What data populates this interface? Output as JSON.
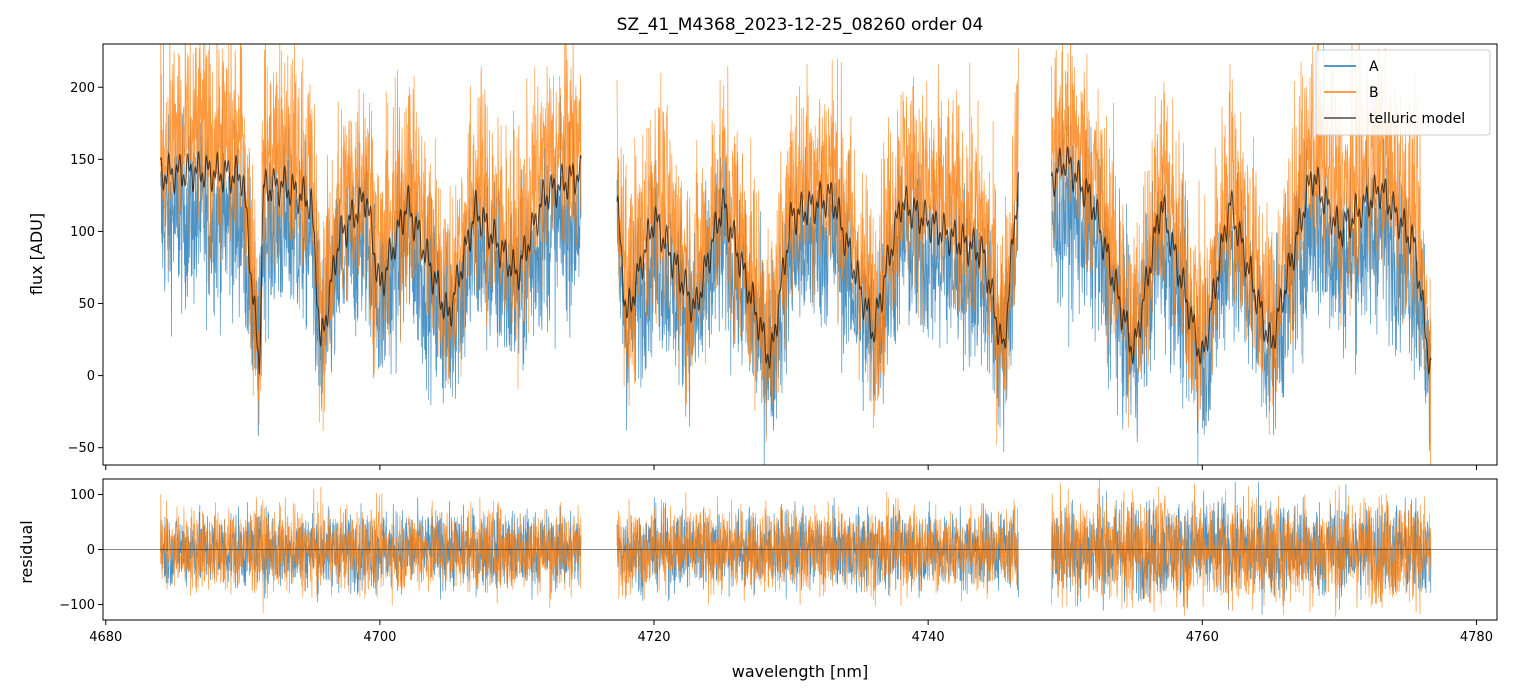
{
  "figure": {
    "title": "SZ_41_M4368_2023-12-25_08260  order 04",
    "xlabel": "wavelength [nm]"
  },
  "colors": {
    "A": "#1f77b4",
    "B": "#ff7f0e",
    "telluric": "#000000"
  },
  "legend": {
    "placement": "top-right",
    "entries": [
      "A",
      "B",
      "telluric model"
    ]
  },
  "chart_data": [
    {
      "type": "line",
      "panel": "top",
      "ylabel": "flux [ADU]",
      "xlim": [
        4679.8,
        4781.5
      ],
      "ylim": [
        -62,
        230
      ],
      "x_ticks": [
        4680,
        4700,
        4720,
        4740,
        4760,
        4780
      ],
      "x_tick_labels_shown": false,
      "y_ticks": [
        -50,
        0,
        50,
        100,
        150,
        200
      ],
      "y_tick_labels": [
        "−50",
        "0",
        "50",
        "100",
        "150",
        "200"
      ],
      "segments": [
        {
          "x_start": 4684.0,
          "x_end": 4714.7
        },
        {
          "x_start": 4717.3,
          "x_end": 4746.6
        },
        {
          "x_start": 4749.0,
          "x_end": 4776.7
        }
      ],
      "series": [
        {
          "name": "A",
          "typical_level": 85,
          "noise_amplitude": 45,
          "description_values": {
            "min": -62,
            "max": 230
          }
        },
        {
          "name": "B",
          "typical_level": 125,
          "noise_amplitude": 55,
          "description_values": {
            "min": -62,
            "max": 230
          }
        },
        {
          "name": "telluric model",
          "key_points": [
            [
              4684.0,
              140
            ],
            [
              4687.0,
              142
            ],
            [
              4690.0,
              138
            ],
            [
              4691.2,
              5
            ],
            [
              4691.5,
              130
            ],
            [
              4693.0,
              132
            ],
            [
              4695.0,
              120
            ],
            [
              4695.7,
              20
            ],
            [
              4697.0,
              95
            ],
            [
              4699.0,
              125
            ],
            [
              4700.0,
              60
            ],
            [
              4702.0,
              120
            ],
            [
              4705.0,
              40
            ],
            [
              4707.0,
              115
            ],
            [
              4710.0,
              70
            ],
            [
              4712.0,
              125
            ],
            [
              4714.5,
              140
            ],
            [
              4717.3,
              120
            ],
            [
              4718.0,
              40
            ],
            [
              4720.0,
              110
            ],
            [
              4723.0,
              45
            ],
            [
              4725.0,
              120
            ],
            [
              4728.5,
              10
            ],
            [
              4730.0,
              110
            ],
            [
              4733.0,
              125
            ],
            [
              4736.0,
              30
            ],
            [
              4738.0,
              120
            ],
            [
              4741.0,
              100
            ],
            [
              4744.0,
              85
            ],
            [
              4745.5,
              15
            ],
            [
              4746.6,
              140
            ],
            [
              4749.0,
              135
            ],
            [
              4750.0,
              150
            ],
            [
              4752.0,
              120
            ],
            [
              4755.0,
              15
            ],
            [
              4757.0,
              120
            ],
            [
              4760.0,
              10
            ],
            [
              4762.0,
              120
            ],
            [
              4765.0,
              20
            ],
            [
              4768.0,
              140
            ],
            [
              4770.0,
              100
            ],
            [
              4773.0,
              130
            ],
            [
              4775.5,
              90
            ],
            [
              4776.7,
              0
            ]
          ]
        }
      ]
    },
    {
      "type": "line",
      "panel": "bottom",
      "ylabel": "residual",
      "xlim": [
        4679.8,
        4781.5
      ],
      "ylim": [
        -128,
        128
      ],
      "x_ticks": [
        4680,
        4700,
        4720,
        4740,
        4760,
        4780
      ],
      "x_tick_labels": [
        "4680",
        "4700",
        "4720",
        "4740",
        "4760",
        "4780"
      ],
      "y_ticks": [
        -100,
        0,
        100
      ],
      "y_tick_labels": [
        "−100",
        "0",
        "100"
      ],
      "reference_line": 0,
      "series": [
        {
          "name": "A",
          "typical_level": 0,
          "noise_amplitude": 50
        },
        {
          "name": "B",
          "typical_level": 0,
          "noise_amplitude": 55
        }
      ]
    }
  ]
}
